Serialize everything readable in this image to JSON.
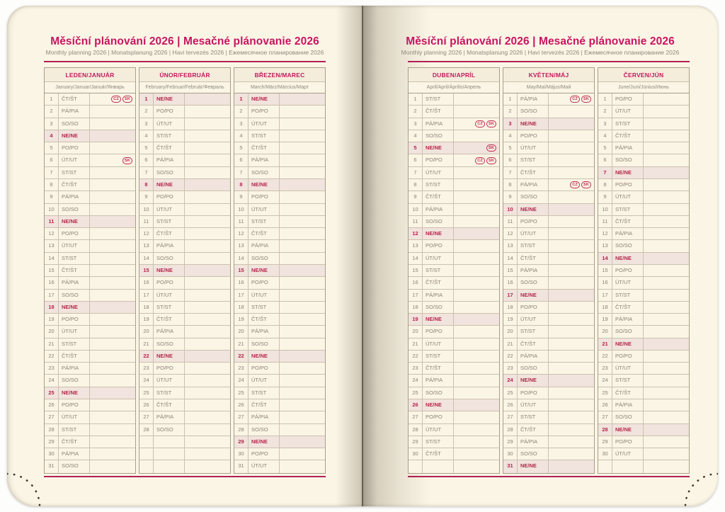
{
  "title": {
    "main": "Měsíční plánování 2026 | Mesačné plánovanie 2026",
    "sub": "Monthly planning 2026 | Monatsplanung 2026 | Havi tervezés 2026 | Ежемесячное планирование 2026"
  },
  "badge_labels": {
    "cz": "CZ",
    "sk": "SK"
  },
  "colors": {
    "accent_pink": "#c81562",
    "rule_pink": "#b02057",
    "holiday_red": "#b6264b",
    "sunday_highlight_bg": "#f1e3dd",
    "paper": "#fbf5e5",
    "grid_outer": "#a89e8a",
    "grid_inner": "#cbc1ae",
    "day_text": "#8c8372"
  },
  "months": [
    {
      "name": "LEDEN/JANUÁR",
      "subtitle": "January/Januar/Január/Январь",
      "rows": [
        [
          1,
          "ČT/ŠT",
          0,
          "cz,sk"
        ],
        [
          2,
          "PÁ/PIA",
          0,
          ""
        ],
        [
          3,
          "SO/SO",
          0,
          ""
        ],
        [
          4,
          "NE/NE",
          1,
          ""
        ],
        [
          5,
          "PO/PO",
          0,
          ""
        ],
        [
          6,
          "ÚT/UT",
          0,
          "sk"
        ],
        [
          7,
          "ST/ST",
          0,
          ""
        ],
        [
          8,
          "ČT/ŠT",
          0,
          ""
        ],
        [
          9,
          "PÁ/PIA",
          0,
          ""
        ],
        [
          10,
          "SO/SO",
          0,
          ""
        ],
        [
          11,
          "NE/NE",
          1,
          ""
        ],
        [
          12,
          "PO/PO",
          0,
          ""
        ],
        [
          13,
          "ÚT/UT",
          0,
          ""
        ],
        [
          14,
          "ST/ST",
          0,
          ""
        ],
        [
          15,
          "ČT/ŠT",
          0,
          ""
        ],
        [
          16,
          "PÁ/PIA",
          0,
          ""
        ],
        [
          17,
          "SO/SO",
          0,
          ""
        ],
        [
          18,
          "NE/NE",
          1,
          ""
        ],
        [
          19,
          "PO/PO",
          0,
          ""
        ],
        [
          20,
          "ÚT/UT",
          0,
          ""
        ],
        [
          21,
          "ST/ST",
          0,
          ""
        ],
        [
          22,
          "ČT/ŠT",
          0,
          ""
        ],
        [
          23,
          "PÁ/PIA",
          0,
          ""
        ],
        [
          24,
          "SO/SO",
          0,
          ""
        ],
        [
          25,
          "NE/NE",
          1,
          ""
        ],
        [
          26,
          "PO/PO",
          0,
          ""
        ],
        [
          27,
          "ÚT/UT",
          0,
          ""
        ],
        [
          28,
          "ST/ST",
          0,
          ""
        ],
        [
          29,
          "ČT/ŠT",
          0,
          ""
        ],
        [
          30,
          "PÁ/PIA",
          0,
          ""
        ],
        [
          31,
          "SO/SO",
          0,
          ""
        ]
      ]
    },
    {
      "name": "ÚNOR/FEBRUÁR",
      "subtitle": "February/Februar/Február/Февраль",
      "rows": [
        [
          1,
          "NE/NE",
          1,
          ""
        ],
        [
          2,
          "PO/PO",
          0,
          ""
        ],
        [
          3,
          "ÚT/UT",
          0,
          ""
        ],
        [
          4,
          "ST/ST",
          0,
          ""
        ],
        [
          5,
          "ČT/ŠT",
          0,
          ""
        ],
        [
          6,
          "PÁ/PIA",
          0,
          ""
        ],
        [
          7,
          "SO/SO",
          0,
          ""
        ],
        [
          8,
          "NE/NE",
          1,
          ""
        ],
        [
          9,
          "PO/PO",
          0,
          ""
        ],
        [
          10,
          "ÚT/UT",
          0,
          ""
        ],
        [
          11,
          "ST/ST",
          0,
          ""
        ],
        [
          12,
          "ČT/ŠT",
          0,
          ""
        ],
        [
          13,
          "PÁ/PIA",
          0,
          ""
        ],
        [
          14,
          "SO/SO",
          0,
          ""
        ],
        [
          15,
          "NE/NE",
          1,
          ""
        ],
        [
          16,
          "PO/PO",
          0,
          ""
        ],
        [
          17,
          "ÚT/UT",
          0,
          ""
        ],
        [
          18,
          "ST/ST",
          0,
          ""
        ],
        [
          19,
          "ČT/ŠT",
          0,
          ""
        ],
        [
          20,
          "PÁ/PIA",
          0,
          ""
        ],
        [
          21,
          "SO/SO",
          0,
          ""
        ],
        [
          22,
          "NE/NE",
          1,
          ""
        ],
        [
          23,
          "PO/PO",
          0,
          ""
        ],
        [
          24,
          "ÚT/UT",
          0,
          ""
        ],
        [
          25,
          "ST/ST",
          0,
          ""
        ],
        [
          26,
          "ČT/ŠT",
          0,
          ""
        ],
        [
          27,
          "PÁ/PIA",
          0,
          ""
        ],
        [
          28,
          "SO/SO",
          0,
          ""
        ],
        [
          "",
          "",
          0,
          ""
        ],
        [
          "",
          "",
          0,
          ""
        ],
        [
          "",
          "",
          0,
          ""
        ]
      ]
    },
    {
      "name": "BŘEZEN/MAREC",
      "subtitle": "March/März/Március/Март",
      "rows": [
        [
          1,
          "NE/NE",
          1,
          ""
        ],
        [
          2,
          "PO/PO",
          0,
          ""
        ],
        [
          3,
          "ÚT/UT",
          0,
          ""
        ],
        [
          4,
          "ST/ST",
          0,
          ""
        ],
        [
          5,
          "ČT/ŠT",
          0,
          ""
        ],
        [
          6,
          "PÁ/PIA",
          0,
          ""
        ],
        [
          7,
          "SO/SO",
          0,
          ""
        ],
        [
          8,
          "NE/NE",
          1,
          ""
        ],
        [
          9,
          "PO/PO",
          0,
          ""
        ],
        [
          10,
          "ÚT/UT",
          0,
          ""
        ],
        [
          11,
          "ST/ST",
          0,
          ""
        ],
        [
          12,
          "ČT/ŠT",
          0,
          ""
        ],
        [
          13,
          "PÁ/PIA",
          0,
          ""
        ],
        [
          14,
          "SO/SO",
          0,
          ""
        ],
        [
          15,
          "NE/NE",
          1,
          ""
        ],
        [
          16,
          "PO/PO",
          0,
          ""
        ],
        [
          17,
          "ÚT/UT",
          0,
          ""
        ],
        [
          18,
          "ST/ST",
          0,
          ""
        ],
        [
          19,
          "ČT/ŠT",
          0,
          ""
        ],
        [
          20,
          "PÁ/PIA",
          0,
          ""
        ],
        [
          21,
          "SO/SO",
          0,
          ""
        ],
        [
          22,
          "NE/NE",
          1,
          ""
        ],
        [
          23,
          "PO/PO",
          0,
          ""
        ],
        [
          24,
          "ÚT/UT",
          0,
          ""
        ],
        [
          25,
          "ST/ST",
          0,
          ""
        ],
        [
          26,
          "ČT/ŠT",
          0,
          ""
        ],
        [
          27,
          "PÁ/PIA",
          0,
          ""
        ],
        [
          28,
          "SO/SO",
          0,
          ""
        ],
        [
          29,
          "NE/NE",
          1,
          ""
        ],
        [
          30,
          "PO/PO",
          0,
          ""
        ],
        [
          31,
          "ÚT/UT",
          0,
          ""
        ]
      ]
    },
    {
      "name": "DUBEN/APRÍL",
      "subtitle": "April/April/Április/Апрель",
      "rows": [
        [
          1,
          "ST/ST",
          0,
          ""
        ],
        [
          2,
          "ČT/ŠT",
          0,
          ""
        ],
        [
          3,
          "PÁ/PIA",
          0,
          "cz,sk"
        ],
        [
          4,
          "SO/SO",
          0,
          ""
        ],
        [
          5,
          "NE/NE",
          1,
          "sk"
        ],
        [
          6,
          "PO/PO",
          0,
          "cz,sk"
        ],
        [
          7,
          "ÚT/UT",
          0,
          ""
        ],
        [
          8,
          "ST/ST",
          0,
          ""
        ],
        [
          9,
          "ČT/ŠT",
          0,
          ""
        ],
        [
          10,
          "PÁ/PIA",
          0,
          ""
        ],
        [
          11,
          "SO/SO",
          0,
          ""
        ],
        [
          12,
          "NE/NE",
          1,
          ""
        ],
        [
          13,
          "PO/PO",
          0,
          ""
        ],
        [
          14,
          "ÚT/UT",
          0,
          ""
        ],
        [
          15,
          "ST/ST",
          0,
          ""
        ],
        [
          16,
          "ČT/ŠT",
          0,
          ""
        ],
        [
          17,
          "PÁ/PIA",
          0,
          ""
        ],
        [
          18,
          "SO/SO",
          0,
          ""
        ],
        [
          19,
          "NE/NE",
          1,
          ""
        ],
        [
          20,
          "PO/PO",
          0,
          ""
        ],
        [
          21,
          "ÚT/UT",
          0,
          ""
        ],
        [
          22,
          "ST/ST",
          0,
          ""
        ],
        [
          23,
          "ČT/ŠT",
          0,
          ""
        ],
        [
          24,
          "PÁ/PIA",
          0,
          ""
        ],
        [
          25,
          "SO/SO",
          0,
          ""
        ],
        [
          26,
          "NE/NE",
          1,
          ""
        ],
        [
          27,
          "PO/PO",
          0,
          ""
        ],
        [
          28,
          "ÚT/UT",
          0,
          ""
        ],
        [
          29,
          "ST/ST",
          0,
          ""
        ],
        [
          30,
          "ČT/ŠT",
          0,
          ""
        ],
        [
          "",
          "",
          0,
          ""
        ]
      ]
    },
    {
      "name": "KVĚTEN/MÁJ",
      "subtitle": "May/Mai/Május/Май",
      "rows": [
        [
          1,
          "PÁ/PIA",
          0,
          "cz,sk"
        ],
        [
          2,
          "SO/SO",
          0,
          ""
        ],
        [
          3,
          "NE/NE",
          1,
          ""
        ],
        [
          4,
          "PO/PO",
          0,
          ""
        ],
        [
          5,
          "ÚT/UT",
          0,
          ""
        ],
        [
          6,
          "ST/ST",
          0,
          ""
        ],
        [
          7,
          "ČT/ŠT",
          0,
          ""
        ],
        [
          8,
          "PÁ/PIA",
          0,
          "cz,sk"
        ],
        [
          9,
          "SO/SO",
          0,
          ""
        ],
        [
          10,
          "NE/NE",
          1,
          ""
        ],
        [
          11,
          "PO/PO",
          0,
          ""
        ],
        [
          12,
          "ÚT/UT",
          0,
          ""
        ],
        [
          13,
          "ST/ST",
          0,
          ""
        ],
        [
          14,
          "ČT/ŠT",
          0,
          ""
        ],
        [
          15,
          "PÁ/PIA",
          0,
          ""
        ],
        [
          16,
          "SO/SO",
          0,
          ""
        ],
        [
          17,
          "NE/NE",
          1,
          ""
        ],
        [
          18,
          "PO/PO",
          0,
          ""
        ],
        [
          19,
          "ÚT/UT",
          0,
          ""
        ],
        [
          20,
          "ST/ST",
          0,
          ""
        ],
        [
          21,
          "ČT/ŠT",
          0,
          ""
        ],
        [
          22,
          "PÁ/PIA",
          0,
          ""
        ],
        [
          23,
          "SO/SO",
          0,
          ""
        ],
        [
          24,
          "NE/NE",
          1,
          ""
        ],
        [
          25,
          "PO/PO",
          0,
          ""
        ],
        [
          26,
          "ÚT/UT",
          0,
          ""
        ],
        [
          27,
          "ST/ST",
          0,
          ""
        ],
        [
          28,
          "ČT/ŠT",
          0,
          ""
        ],
        [
          29,
          "PÁ/PIA",
          0,
          ""
        ],
        [
          30,
          "SO/SO",
          0,
          ""
        ],
        [
          31,
          "NE/NE",
          1,
          ""
        ]
      ]
    },
    {
      "name": "ČERVEN/JÚN",
      "subtitle": "June/Juni/Június/Июнь",
      "rows": [
        [
          1,
          "PO/PO",
          0,
          ""
        ],
        [
          2,
          "ÚT/UT",
          0,
          ""
        ],
        [
          3,
          "ST/ST",
          0,
          ""
        ],
        [
          4,
          "ČT/ŠT",
          0,
          ""
        ],
        [
          5,
          "PÁ/PIA",
          0,
          ""
        ],
        [
          6,
          "SO/SO",
          0,
          ""
        ],
        [
          7,
          "NE/NE",
          1,
          ""
        ],
        [
          8,
          "PO/PO",
          0,
          ""
        ],
        [
          9,
          "ÚT/UT",
          0,
          ""
        ],
        [
          10,
          "ST/ST",
          0,
          ""
        ],
        [
          11,
          "ČT/ŠT",
          0,
          ""
        ],
        [
          12,
          "PÁ/PIA",
          0,
          ""
        ],
        [
          13,
          "SO/SO",
          0,
          ""
        ],
        [
          14,
          "NE/NE",
          1,
          ""
        ],
        [
          15,
          "PO/PO",
          0,
          ""
        ],
        [
          16,
          "ÚT/UT",
          0,
          ""
        ],
        [
          17,
          "ST/ST",
          0,
          ""
        ],
        [
          18,
          "ČT/ŠT",
          0,
          ""
        ],
        [
          19,
          "PÁ/PIA",
          0,
          ""
        ],
        [
          20,
          "SO/SO",
          0,
          ""
        ],
        [
          21,
          "NE/NE",
          1,
          ""
        ],
        [
          22,
          "PO/PO",
          0,
          ""
        ],
        [
          23,
          "ÚT/UT",
          0,
          ""
        ],
        [
          24,
          "ST/ST",
          0,
          ""
        ],
        [
          25,
          "ČT/ŠT",
          0,
          ""
        ],
        [
          26,
          "PÁ/PIA",
          0,
          ""
        ],
        [
          27,
          "SO/SO",
          0,
          ""
        ],
        [
          28,
          "NE/NE",
          1,
          ""
        ],
        [
          29,
          "PO/PO",
          0,
          ""
        ],
        [
          30,
          "ÚT/UT",
          0,
          ""
        ],
        [
          "",
          "",
          0,
          ""
        ]
      ]
    }
  ]
}
